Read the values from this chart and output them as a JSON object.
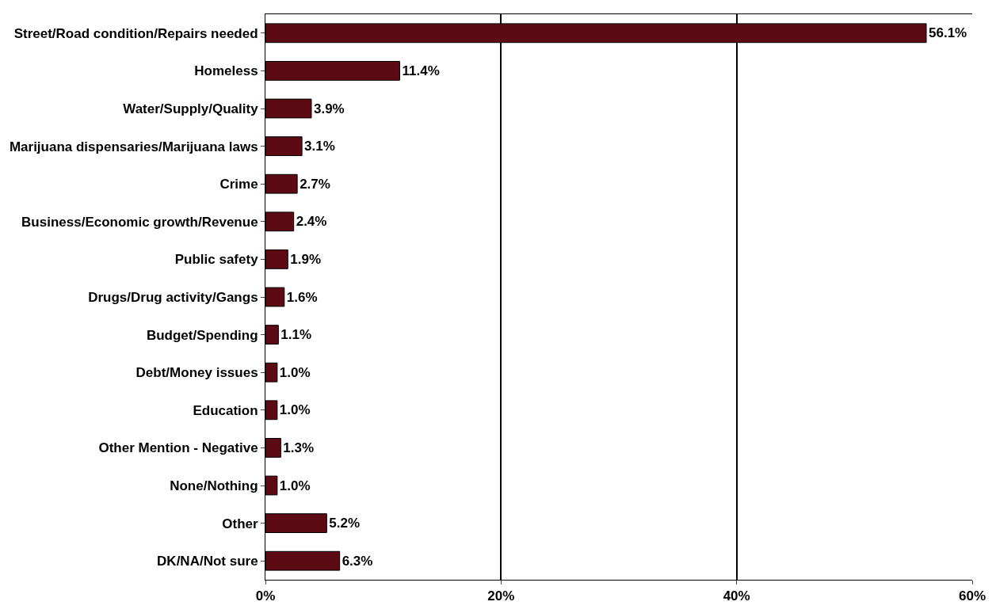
{
  "chart_data": {
    "type": "bar",
    "orientation": "horizontal",
    "categories": [
      "Street/Road condition/Repairs needed",
      "Homeless",
      "Water/Supply/Quality",
      "Marijuana dispensaries/Marijuana laws",
      "Crime",
      "Business/Economic growth/Revenue",
      "Public safety",
      "Drugs/Drug activity/Gangs",
      "Budget/Spending",
      "Debt/Money issues",
      "Education",
      "Other Mention - Negative",
      "None/Nothing",
      "Other",
      "DK/NA/Not sure"
    ],
    "values": [
      56.1,
      11.4,
      3.9,
      3.1,
      2.7,
      2.4,
      1.9,
      1.6,
      1.1,
      1.0,
      1.0,
      1.3,
      1.0,
      5.2,
      6.3
    ],
    "value_labels": [
      "56.1%",
      "11.4%",
      "3.9%",
      "3.1%",
      "2.7%",
      "2.4%",
      "1.9%",
      "1.6%",
      "1.1%",
      "1.0%",
      "1.0%",
      "1.3%",
      "1.0%",
      "5.2%",
      "6.3%"
    ],
    "color": "#5c0a14",
    "xlim": [
      0,
      60
    ],
    "xticks": [
      {
        "value": 0,
        "label": "0%"
      },
      {
        "value": 20,
        "label": "20%"
      },
      {
        "value": 40,
        "label": "40%"
      },
      {
        "value": 60,
        "label": "60%"
      }
    ],
    "grid": "x"
  }
}
